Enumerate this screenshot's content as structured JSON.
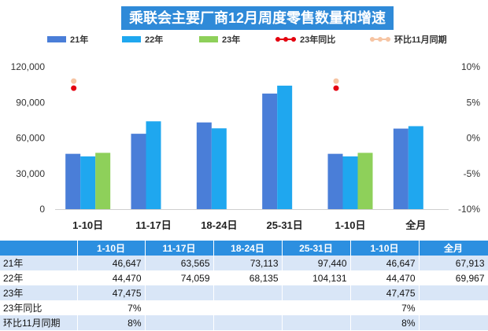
{
  "title": "乘联会主要厂商12月周度零售数量和增速",
  "colors": {
    "y21": "#4a7ed8",
    "y22": "#1fa7ef",
    "y23": "#8ed05a",
    "yoy": "#e4000f",
    "mom": "#f6c4a2"
  },
  "chart_data": {
    "type": "bar",
    "categories": [
      "1-10日",
      "11-17日",
      "18-24日",
      "25-31日",
      "1-10日",
      "全月"
    ],
    "series": [
      {
        "name": "21年",
        "type": "bar",
        "values": [
          46647,
          63565,
          73113,
          97440,
          46647,
          67913
        ]
      },
      {
        "name": "22年",
        "type": "bar",
        "values": [
          44470,
          74059,
          68135,
          104131,
          44470,
          69967
        ]
      },
      {
        "name": "23年",
        "type": "bar",
        "values": [
          47475,
          null,
          null,
          null,
          47475,
          null
        ]
      },
      {
        "name": "23年同比",
        "type": "line",
        "axis": "right",
        "values": [
          7,
          null,
          null,
          null,
          7,
          null
        ]
      },
      {
        "name": "环比11月同期",
        "type": "line",
        "axis": "right",
        "values": [
          8,
          null,
          null,
          null,
          8,
          null
        ]
      }
    ],
    "y_ticks": [
      "0",
      "30,000",
      "60,000",
      "90,000",
      "120,000"
    ],
    "y2_ticks": [
      "-10%",
      "-5%",
      "0%",
      "5%",
      "10%"
    ],
    "ylim": [
      0,
      120000
    ],
    "y2lim": [
      -10,
      10
    ],
    "legend": "top"
  },
  "table": {
    "header": [
      "",
      "1-10日",
      "11-17日",
      "18-24日",
      "25-31日",
      "1-10日",
      "全月"
    ],
    "rows": [
      {
        "label": "21年",
        "cells": [
          "46,647",
          "63,565",
          "73,113",
          "97,440",
          "46,647",
          "67,913"
        ]
      },
      {
        "label": "22年",
        "cells": [
          "44,470",
          "74,059",
          "68,135",
          "104,131",
          "44,470",
          "69,967"
        ]
      },
      {
        "label": "23年",
        "cells": [
          "47,475",
          "",
          "",
          "",
          "47,475",
          ""
        ]
      },
      {
        "label": "23年同比",
        "cells": [
          "7%",
          "",
          "",
          "",
          "7%",
          ""
        ]
      },
      {
        "label": "环比11月同期",
        "cells": [
          "8%",
          "",
          "",
          "",
          "8%",
          ""
        ]
      }
    ]
  }
}
